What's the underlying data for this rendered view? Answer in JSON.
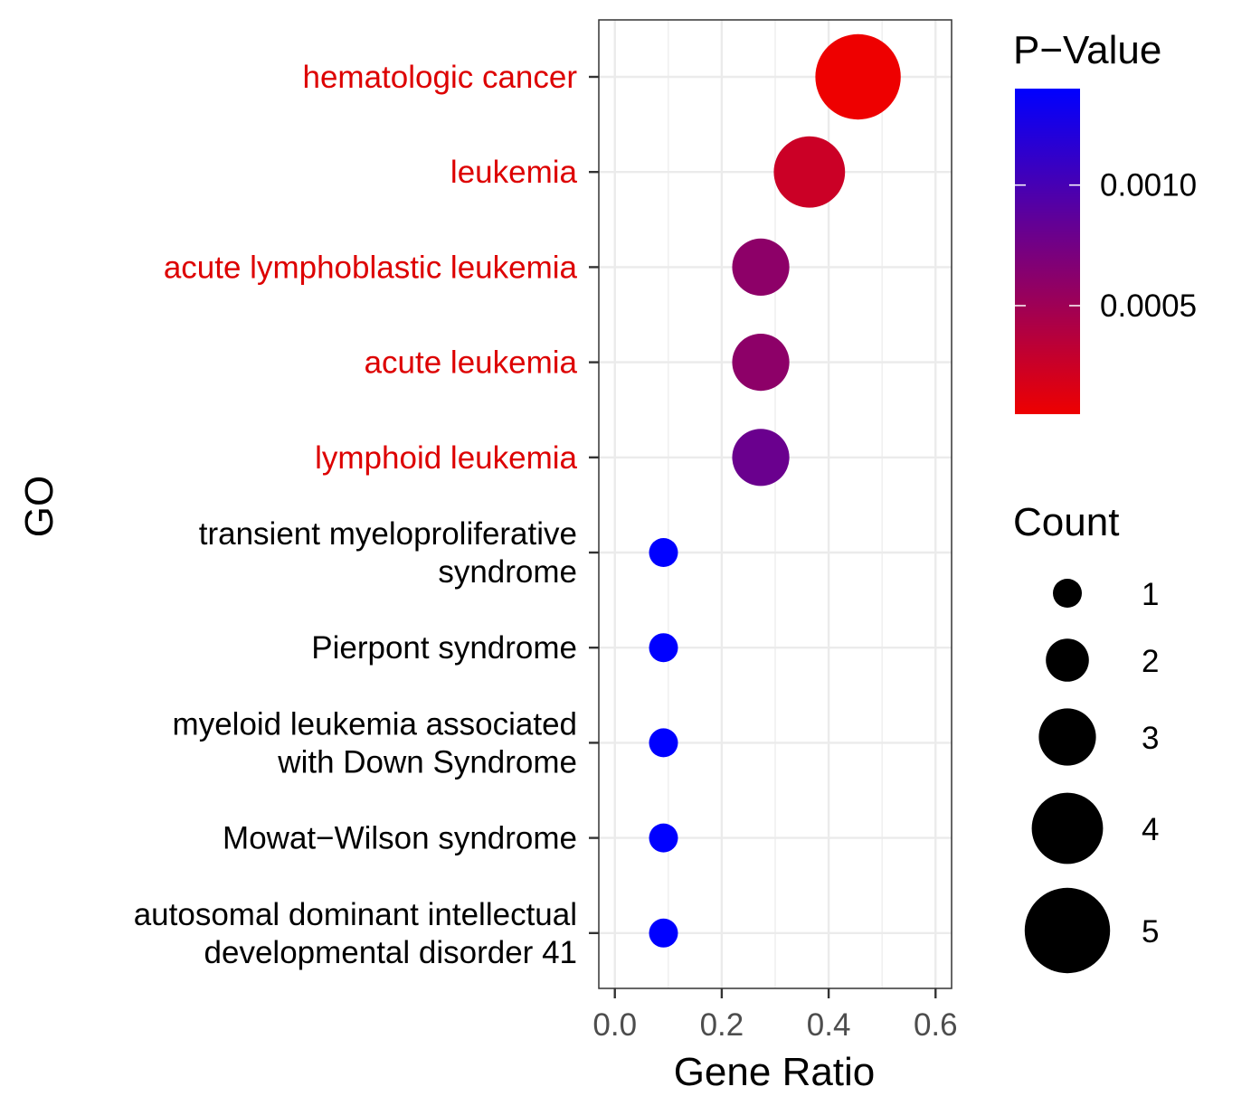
{
  "chart_data": {
    "type": "scatter",
    "xlabel": "Gene Ratio",
    "ylabel": "GO",
    "xlim": [
      -0.03,
      0.63
    ],
    "x_ticks": [
      0.0,
      0.2,
      0.4,
      0.6
    ],
    "x_tick_labels": [
      "0.0",
      "0.2",
      "0.4",
      "0.6"
    ],
    "grid": true,
    "highlight_color": "#dd0000",
    "points": [
      {
        "term": [
          "hematologic cancer"
        ],
        "gene_ratio": 0.455,
        "count": 5,
        "pvalue": 5e-05,
        "highlight": true
      },
      {
        "term": [
          "leukemia"
        ],
        "gene_ratio": 0.364,
        "count": 4,
        "pvalue": 0.00025,
        "highlight": true
      },
      {
        "term": [
          "acute lymphoblastic leukemia"
        ],
        "gene_ratio": 0.273,
        "count": 3,
        "pvalue": 0.0006,
        "highlight": true
      },
      {
        "term": [
          "acute leukemia"
        ],
        "gene_ratio": 0.273,
        "count": 3,
        "pvalue": 0.0006,
        "highlight": true
      },
      {
        "term": [
          "lymphoid leukemia"
        ],
        "gene_ratio": 0.273,
        "count": 3,
        "pvalue": 0.0008,
        "highlight": true
      },
      {
        "term": [
          "transient myeloproliferative",
          "syndrome"
        ],
        "gene_ratio": 0.091,
        "count": 1,
        "pvalue": 0.0014,
        "highlight": false
      },
      {
        "term": [
          "Pierpont syndrome"
        ],
        "gene_ratio": 0.091,
        "count": 1,
        "pvalue": 0.0014,
        "highlight": false
      },
      {
        "term": [
          "myeloid leukemia associated",
          "with Down Syndrome"
        ],
        "gene_ratio": 0.091,
        "count": 1,
        "pvalue": 0.0014,
        "highlight": false
      },
      {
        "term": [
          "Mowat−Wilson syndrome"
        ],
        "gene_ratio": 0.091,
        "count": 1,
        "pvalue": 0.0014,
        "highlight": false
      },
      {
        "term": [
          "autosomal dominant intellectual",
          "developmental disorder 41"
        ],
        "gene_ratio": 0.091,
        "count": 1,
        "pvalue": 0.0014,
        "highlight": false
      }
    ],
    "legend_color": {
      "title": "P−Value",
      "range": [
        5e-05,
        0.0014
      ],
      "low_color": "#ee0000",
      "high_color": "#0000ff",
      "ticks": [
        0.0005,
        0.001
      ],
      "tick_labels": [
        "0.0005",
        "0.0010"
      ]
    },
    "legend_size": {
      "title": "Count",
      "values": [
        1,
        2,
        3,
        4,
        5
      ],
      "labels": [
        "1",
        "2",
        "3",
        "4",
        "5"
      ]
    }
  }
}
